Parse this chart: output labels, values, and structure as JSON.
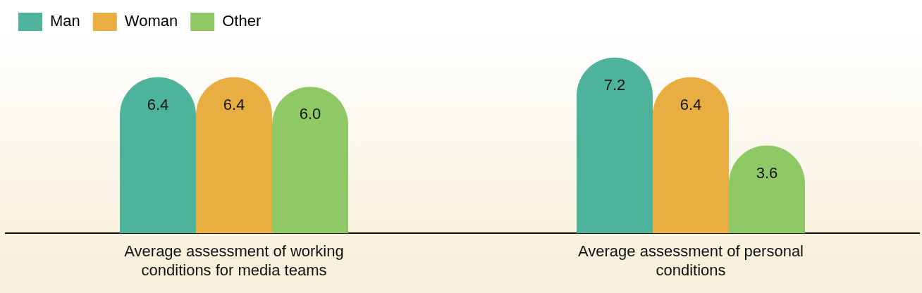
{
  "chart_data": {
    "type": "bar",
    "categories": [
      "Average assessment of working conditions for media teams",
      "Average assessment of personal conditions"
    ],
    "series": [
      {
        "name": "Man",
        "color": "#4db39b",
        "values": [
          6.4,
          7.2
        ],
        "value_labels": [
          "6.4",
          "7.2"
        ]
      },
      {
        "name": "Woman",
        "color": "#e8ae42",
        "values": [
          6.4,
          6.4
        ],
        "value_labels": [
          "6.4",
          "6.4"
        ]
      },
      {
        "name": "Other",
        "color": "#8fc965",
        "values": [
          6.0,
          3.6
        ],
        "value_labels": [
          "6.0",
          "3.6"
        ]
      }
    ],
    "legend": "top left",
    "grid": false,
    "tick_labels": "x"
  }
}
